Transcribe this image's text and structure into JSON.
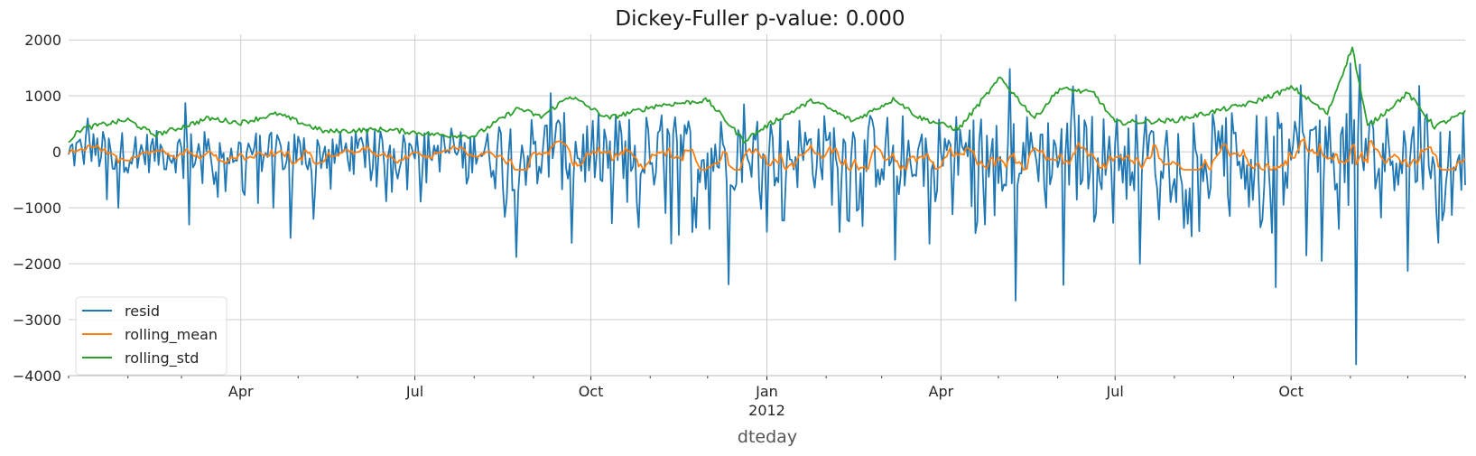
{
  "chart_data": {
    "type": "line",
    "title": "Dickey-Fuller p-value: 0.000",
    "xlabel": "dteday",
    "ylabel": "",
    "ylim": [
      -4000,
      2100
    ],
    "yticks": [
      2000,
      1000,
      0,
      -1000,
      -2000,
      -3000,
      -4000
    ],
    "ytick_labels": [
      "2000",
      "1000",
      "0",
      "−1000",
      "−2000",
      "−3000",
      "−4000"
    ],
    "x_start": "2011-01-01",
    "x_end": "2012-12-31",
    "xticks": [
      {
        "date": "2011-04-01",
        "label": "Apr"
      },
      {
        "date": "2011-07-01",
        "label": "Jul"
      },
      {
        "date": "2011-10-01",
        "label": "Oct"
      },
      {
        "date": "2012-01-01",
        "label": "Jan"
      },
      {
        "date": "2012-04-01",
        "label": "Apr"
      },
      {
        "date": "2012-07-01",
        "label": "Jul"
      },
      {
        "date": "2012-10-01",
        "label": "Oct"
      }
    ],
    "year_label": {
      "date": "2012-01-01",
      "label": "2012"
    },
    "minor_ticks": [
      "2011-01-01",
      "2011-02-01",
      "2011-03-01",
      "2011-05-01",
      "2011-06-01",
      "2011-08-01",
      "2011-09-01",
      "2011-11-01",
      "2011-12-01",
      "2012-02-01",
      "2012-03-01",
      "2012-05-01",
      "2012-06-01",
      "2012-08-01",
      "2012-09-01",
      "2012-11-01",
      "2012-12-01",
      "2012-12-31"
    ],
    "grid": true,
    "legend_position": "lower-left",
    "series": [
      {
        "name": "resid",
        "color": "#1f77b4"
      },
      {
        "name": "rolling_mean",
        "color": "#ff7f0e"
      },
      {
        "name": "rolling_std",
        "color": "#2ca02c"
      }
    ],
    "resid_anchors": [
      {
        "date": "2011-06-06",
        "value": 400
      },
      {
        "date": "2011-06-15",
        "value": -250
      },
      {
        "date": "2011-06-25",
        "value": 300
      },
      {
        "date": "2011-07-02",
        "value": 320
      },
      {
        "date": "2011-07-10",
        "value": -150
      },
      {
        "date": "2011-07-20",
        "value": 420
      },
      {
        "date": "2011-08-01",
        "value": 280
      },
      {
        "date": "2011-08-10",
        "value": -450
      },
      {
        "date": "2011-08-23",
        "value": -1880
      },
      {
        "date": "2011-09-10",
        "value": 1050
      },
      {
        "date": "2011-09-21",
        "value": -1630
      },
      {
        "date": "2011-10-12",
        "value": -1280
      },
      {
        "date": "2011-10-26",
        "value": -1350
      },
      {
        "date": "2011-11-12",
        "value": -1640
      },
      {
        "date": "2011-12-02",
        "value": -1380
      },
      {
        "date": "2011-12-12",
        "value": -2370
      },
      {
        "date": "2011-12-20",
        "value": 850
      },
      {
        "date": "2012-01-10",
        "value": -1230
      },
      {
        "date": "2012-02-04",
        "value": -950
      },
      {
        "date": "2012-02-20",
        "value": -1330
      },
      {
        "date": "2012-03-08",
        "value": -1930
      },
      {
        "date": "2012-03-26",
        "value": -1640
      },
      {
        "date": "2012-04-24",
        "value": -1300
      },
      {
        "date": "2012-05-07",
        "value": 1480
      },
      {
        "date": "2012-05-10",
        "value": -2660
      },
      {
        "date": "2012-05-26",
        "value": -1000
      },
      {
        "date": "2012-06-04",
        "value": -2380
      },
      {
        "date": "2012-06-09",
        "value": 1170
      },
      {
        "date": "2012-06-20",
        "value": -1250
      },
      {
        "date": "2012-06-30",
        "value": -1270
      },
      {
        "date": "2012-07-14",
        "value": -2000
      },
      {
        "date": "2012-07-24",
        "value": -1210
      },
      {
        "date": "2012-08-14",
        "value": -1420
      },
      {
        "date": "2012-08-30",
        "value": -1150
      },
      {
        "date": "2012-09-15",
        "value": -1350
      },
      {
        "date": "2012-09-23",
        "value": -2420
      },
      {
        "date": "2012-10-06",
        "value": 1190
      },
      {
        "date": "2012-10-09",
        "value": -1850
      },
      {
        "date": "2012-10-17",
        "value": -1950
      },
      {
        "date": "2012-10-26",
        "value": -1380
      },
      {
        "date": "2012-11-01",
        "value": 1580
      },
      {
        "date": "2012-11-04",
        "value": -3800
      },
      {
        "date": "2012-11-06",
        "value": 1560
      },
      {
        "date": "2012-12-01",
        "value": -2130
      },
      {
        "date": "2012-12-07",
        "value": 1180
      },
      {
        "date": "2012-12-24",
        "value": -1130
      },
      {
        "date": "2012-12-30",
        "value": 700
      },
      {
        "date": "2011-01-01",
        "value": -50
      },
      {
        "date": "2011-01-11",
        "value": 600
      },
      {
        "date": "2011-01-21",
        "value": -850
      },
      {
        "date": "2011-01-27",
        "value": -1000
      },
      {
        "date": "2011-03-03",
        "value": 870
      },
      {
        "date": "2011-03-05",
        "value": -1300
      },
      {
        "date": "2011-04-10",
        "value": -920
      },
      {
        "date": "2011-04-18",
        "value": -1000
      },
      {
        "date": "2011-04-27",
        "value": -1540
      },
      {
        "date": "2011-05-09",
        "value": -1200
      }
    ],
    "rolling_std_anchors": [
      {
        "date": "2011-01-01",
        "value": 200
      },
      {
        "date": "2011-01-08",
        "value": 420
      },
      {
        "date": "2011-02-01",
        "value": 570
      },
      {
        "date": "2011-02-15",
        "value": 300
      },
      {
        "date": "2011-03-01",
        "value": 440
      },
      {
        "date": "2011-03-15",
        "value": 600
      },
      {
        "date": "2011-04-01",
        "value": 520
      },
      {
        "date": "2011-04-20",
        "value": 680
      },
      {
        "date": "2011-05-15",
        "value": 360
      },
      {
        "date": "2011-06-15",
        "value": 400
      },
      {
        "date": "2011-07-15",
        "value": 300
      },
      {
        "date": "2011-08-01",
        "value": 280
      },
      {
        "date": "2011-08-24",
        "value": 780
      },
      {
        "date": "2011-09-05",
        "value": 620
      },
      {
        "date": "2011-09-20",
        "value": 1000
      },
      {
        "date": "2011-10-10",
        "value": 600
      },
      {
        "date": "2011-11-05",
        "value": 830
      },
      {
        "date": "2011-12-01",
        "value": 920
      },
      {
        "date": "2011-12-20",
        "value": 200
      },
      {
        "date": "2012-01-05",
        "value": 550
      },
      {
        "date": "2012-01-25",
        "value": 920
      },
      {
        "date": "2012-02-15",
        "value": 550
      },
      {
        "date": "2012-03-08",
        "value": 950
      },
      {
        "date": "2012-03-20",
        "value": 620
      },
      {
        "date": "2012-04-10",
        "value": 400
      },
      {
        "date": "2012-05-02",
        "value": 1320
      },
      {
        "date": "2012-05-20",
        "value": 600
      },
      {
        "date": "2012-06-02",
        "value": 1130
      },
      {
        "date": "2012-06-20",
        "value": 1050
      },
      {
        "date": "2012-07-01",
        "value": 520
      },
      {
        "date": "2012-08-01",
        "value": 560
      },
      {
        "date": "2012-09-10",
        "value": 870
      },
      {
        "date": "2012-10-02",
        "value": 1150
      },
      {
        "date": "2012-10-20",
        "value": 680
      },
      {
        "date": "2012-11-02",
        "value": 1870
      },
      {
        "date": "2012-11-10",
        "value": 450
      },
      {
        "date": "2012-12-01",
        "value": 1050
      },
      {
        "date": "2012-12-15",
        "value": 450
      },
      {
        "date": "2012-12-31",
        "value": 700
      }
    ]
  }
}
